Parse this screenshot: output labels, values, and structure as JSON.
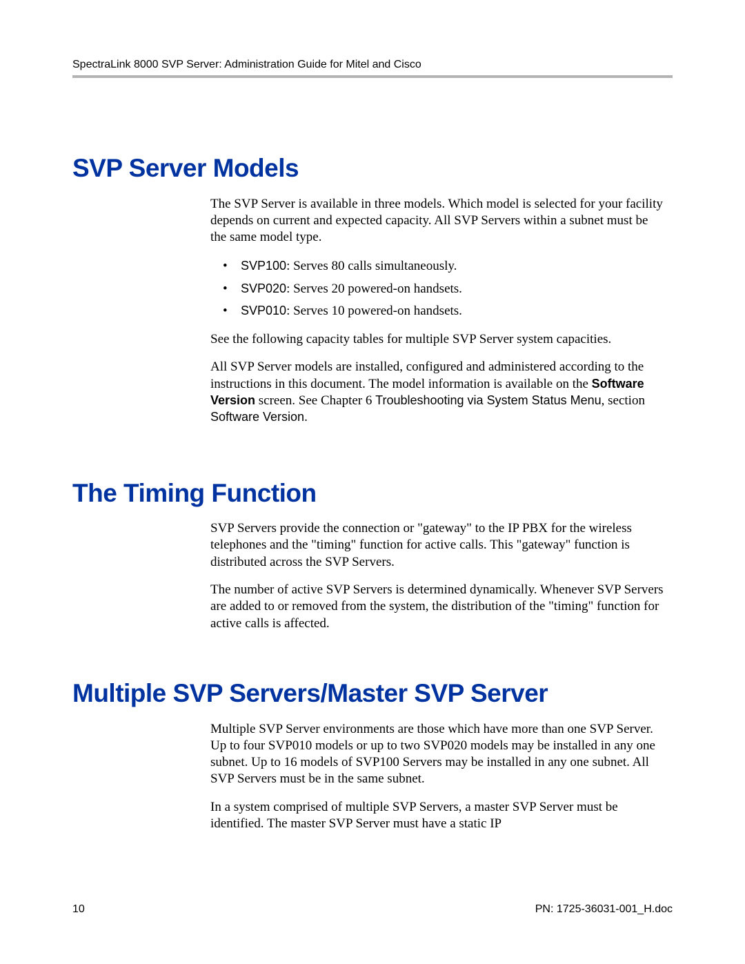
{
  "header": {
    "text": "SpectraLink 8000 SVP Server: Administration Guide for Mitel and Cisco"
  },
  "section1": {
    "heading": "SVP Server Models",
    "para1": "The SVP Server is available in three models. Which model is selected for your facility depends on current and expected capacity. All SVP Servers within a subnet must be the same model type.",
    "bullets": [
      {
        "label": "SVP100",
        "text": ": Serves 80 calls simultaneously."
      },
      {
        "label": "SVP020",
        "text": ": Serves 20 powered-on handsets."
      },
      {
        "label": "SVP010",
        "text": ": Serves 10 powered-on handsets."
      }
    ],
    "para2": "See the following capacity tables for multiple SVP Server system capacities.",
    "para3_a": "All SVP Server models are installed, configured and administered according to the instructions in this document. The model information is available on the ",
    "para3_bold": "Software Version",
    "para3_b": " screen. See Chapter 6 ",
    "para3_sans1": "Troubleshooting via System Status Menu",
    "para3_mid": ", section ",
    "para3_sans2": "Software Version",
    "para3_end": "."
  },
  "section2": {
    "heading": "The Timing Function",
    "para1": "SVP Servers provide the connection or \"gateway\" to the IP PBX for the wireless telephones and the \"timing\" function for active calls. This \"gateway\" function is distributed across the SVP Servers.",
    "para2": "The number of active SVP Servers is determined dynamically. Whenever SVP Servers are added to or removed from the system, the distribution of the \"timing\" function for active calls is affected."
  },
  "section3": {
    "heading": "Multiple SVP Servers/Master SVP Server",
    "para1": "Multiple SVP Server environments are those which have more than one SVP Server. Up to four SVP010 models or up to two SVP020 models may be installed in any one subnet. Up to 16 models of SVP100 Servers may be installed in any one subnet. All SVP Servers must be in the same subnet.",
    "para2": "In a system comprised of multiple SVP Servers, a master SVP Server must be identified. The master SVP Server must have a static IP"
  },
  "footer": {
    "page": "10",
    "pn": "PN: 1725-36031-001_H.doc"
  },
  "colors": {
    "heading": "#0033a0",
    "rule": "#b3b3b3",
    "text": "#000000",
    "background": "#ffffff"
  },
  "fonts": {
    "heading_size_pt": 28,
    "body_size_pt": 14,
    "header_footer_size_pt": 12
  }
}
